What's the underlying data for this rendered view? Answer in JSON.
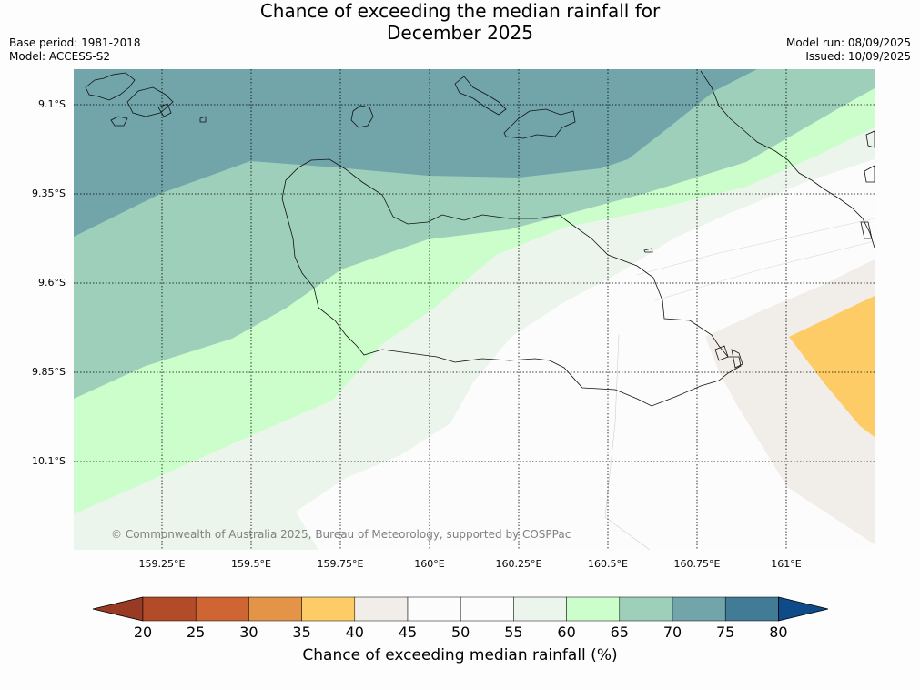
{
  "header": {
    "title_line1": "Chance of exceeding the median rainfall for",
    "title_line2": "December 2025",
    "base_period": "Base period: 1981-2018",
    "model": "Model: ACCESS-S2",
    "model_run": "Model run: 08/09/2025",
    "issued": "Issued: 10/09/2025"
  },
  "map": {
    "lat_labels": [
      "9.1°S",
      "9.35°S",
      "9.6°S",
      "9.85°S",
      "10.1°S"
    ],
    "lon_labels": [
      "159.25°E",
      "159.5°E",
      "159.75°E",
      "160°E",
      "160.25°E",
      "160.5°E",
      "160.75°E",
      "161°E"
    ],
    "copyright": "© Commonwealth of Australia 2025, Bureau of Meteorology, supported by COSPPac"
  },
  "colorbar": {
    "title": "Chance of exceeding median rainfall (%)",
    "ticks": [
      "20",
      "25",
      "30",
      "35",
      "40",
      "45",
      "50",
      "55",
      "60",
      "65",
      "70",
      "75",
      "80"
    ],
    "colors": [
      "#983a24",
      "#b24b27",
      "#cf6533",
      "#e39446",
      "#fecc66",
      "#f1ede8",
      "#fbfcfb",
      "#fbfcfb",
      "#ecf5ec",
      "#ccfecc",
      "#9dcfbb",
      "#71a5aa",
      "#427b96",
      "#0f4b89"
    ]
  }
}
